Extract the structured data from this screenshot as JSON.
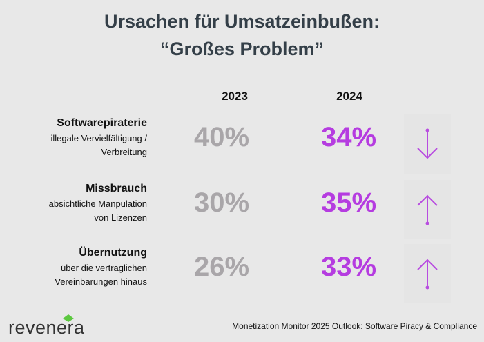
{
  "title_line1": "Ursachen für Umsatzeinbußen:",
  "title_line2": "“Großes Problem”",
  "chart_data": {
    "type": "table",
    "columns": [
      "2023",
      "2024"
    ],
    "rows": [
      {
        "label": "Softwarepiraterie",
        "sublabel_lines": [
          "illegale Vervielfältigung /",
          "Verbreitung"
        ],
        "values": [
          40,
          34
        ],
        "display": [
          "40%",
          "34%"
        ],
        "trend": "down"
      },
      {
        "label": "Missbrauch",
        "sublabel_lines": [
          "absichtliche Manpulation",
          "von Lizenzen"
        ],
        "values": [
          30,
          35
        ],
        "display": [
          "30%",
          "35%"
        ],
        "trend": "up"
      },
      {
        "label": "Übernutzung",
        "sublabel_lines": [
          "über die vertraglichen",
          "Vereinbarungen hinaus"
        ],
        "values": [
          26,
          33
        ],
        "display": [
          "26%",
          "33%"
        ],
        "trend": "up"
      }
    ],
    "colors": {
      "2023": "#a9a6a9",
      "2024": "#b53ce0",
      "arrow": "#b84ce0",
      "title": "#343f48"
    }
  },
  "footer": "Monetization Monitor 2025 Outlook: Software Piracy & Compliance",
  "logo": "revenera"
}
